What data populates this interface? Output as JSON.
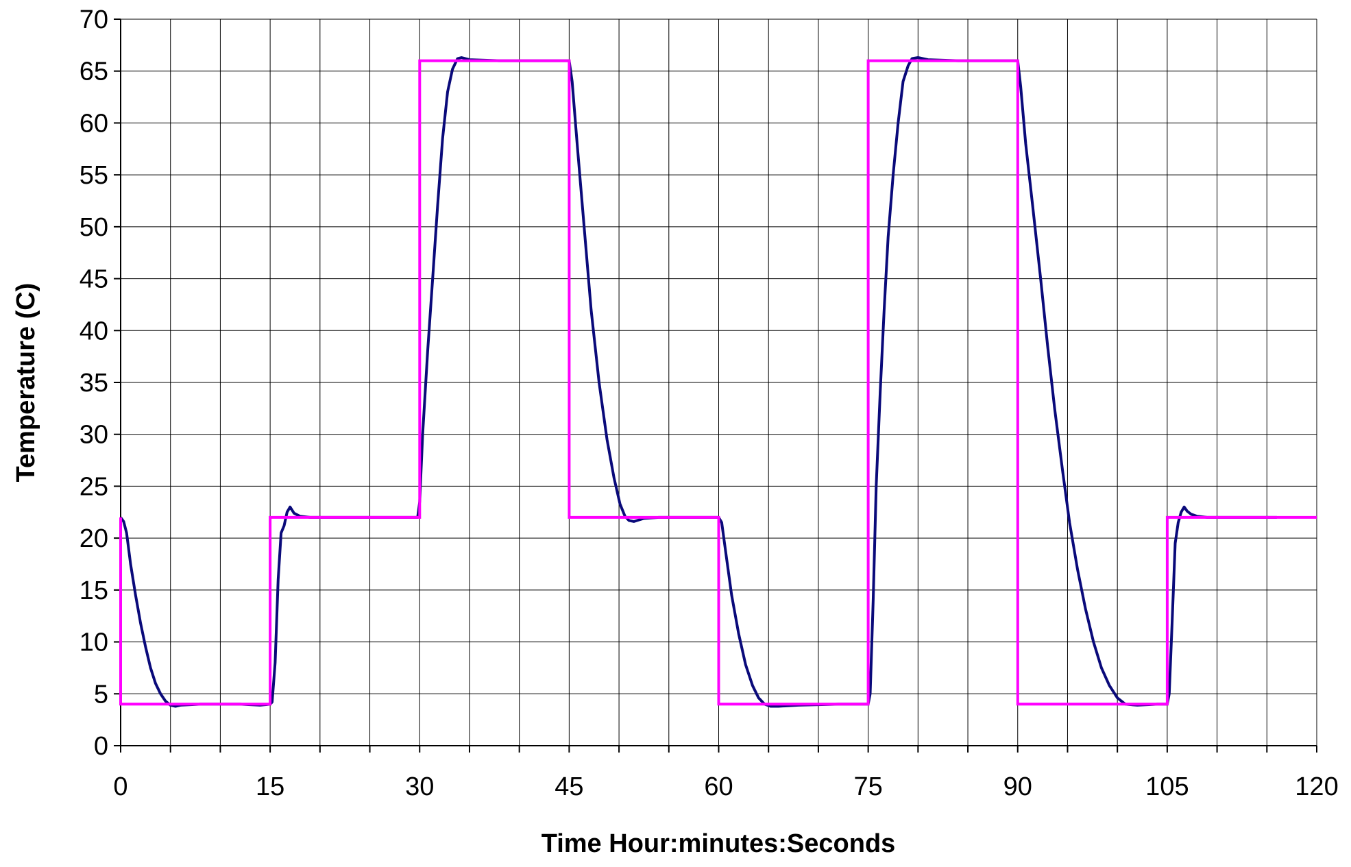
{
  "chart_data": {
    "type": "line",
    "title": "",
    "xlabel": "Time Hour:minutes:Seconds",
    "ylabel": "Temperature (C)",
    "xlim": [
      0,
      120
    ],
    "ylim": [
      0,
      70
    ],
    "xticks": [
      0,
      15,
      30,
      45,
      60,
      75,
      90,
      105,
      120
    ],
    "x_minor_step": 5,
    "yticks": [
      0,
      5,
      10,
      15,
      20,
      25,
      30,
      35,
      40,
      45,
      50,
      55,
      60,
      65,
      70
    ],
    "grid": true,
    "legend": "none",
    "series": [
      {
        "color": "#FF00FF",
        "style": "step",
        "x": [
          0,
          0,
          15,
          15,
          30,
          30,
          45,
          45,
          60,
          60,
          75,
          75,
          90,
          90,
          105,
          105,
          120
        ],
        "y": [
          22,
          4,
          4,
          22,
          22,
          66,
          66,
          22,
          22,
          4,
          4,
          66,
          66,
          4,
          4,
          22,
          22
        ]
      },
      {
        "color": "#0A0A7A",
        "style": "line",
        "x": [
          0,
          0.3,
          0.6,
          1,
          1.5,
          2,
          2.5,
          3,
          3.5,
          4,
          4.5,
          5,
          5.5,
          6,
          8,
          10,
          12,
          14,
          15,
          15.2,
          15.5,
          15.8,
          16.1,
          16.4,
          16.7,
          17,
          17.4,
          18,
          19,
          22,
          26,
          29.8,
          30,
          30.3,
          30.8,
          31.3,
          31.8,
          32.3,
          32.8,
          33.3,
          33.8,
          34.2,
          35,
          38,
          42,
          45,
          45.3,
          45.8,
          46.5,
          47.2,
          48,
          48.8,
          49.5,
          50.1,
          50.6,
          51,
          51.5,
          52.5,
          54,
          57,
          60,
          60.3,
          60.8,
          61.3,
          62,
          62.7,
          63.4,
          64,
          64.6,
          65.2,
          66,
          68,
          72,
          75,
          75.2,
          75.5,
          75.8,
          76.2,
          76.6,
          77,
          77.5,
          78,
          78.5,
          79,
          79.4,
          80,
          81,
          84,
          87,
          90,
          90.3,
          90.8,
          91.5,
          92.3,
          93,
          93.7,
          94.5,
          95.2,
          96,
          96.8,
          97.6,
          98.4,
          99.2,
          100,
          100.8,
          102,
          104,
          105,
          105.2,
          105.5,
          105.8,
          106.1,
          106.4,
          106.7,
          107,
          107.4,
          108,
          109,
          112,
          116
        ],
        "y": [
          22,
          21.6,
          20.5,
          17.5,
          14.5,
          11.8,
          9.5,
          7.5,
          6.0,
          5.0,
          4.3,
          3.9,
          3.8,
          3.9,
          4.0,
          4.0,
          4.0,
          3.9,
          4.0,
          4.2,
          8.0,
          16.0,
          20.5,
          21.2,
          22.5,
          23.0,
          22.4,
          22.1,
          22.0,
          22.0,
          22.0,
          22.0,
          23.5,
          30.0,
          38.0,
          45.0,
          52.0,
          58.5,
          63.0,
          65.2,
          66.2,
          66.3,
          66.1,
          66.0,
          66.0,
          66.0,
          64.0,
          58.0,
          50.0,
          42.0,
          35.0,
          29.5,
          25.8,
          23.3,
          22.1,
          21.7,
          21.6,
          21.9,
          22.0,
          22.0,
          22.0,
          21.5,
          18.0,
          14.5,
          10.8,
          7.8,
          5.8,
          4.6,
          4.0,
          3.8,
          3.8,
          3.9,
          4.0,
          4.0,
          5.0,
          14.0,
          25.0,
          34.0,
          42.0,
          49.0,
          55.0,
          60.0,
          64.0,
          65.5,
          66.2,
          66.3,
          66.1,
          66.0,
          66.0,
          66.0,
          63.5,
          58.0,
          52.0,
          45.0,
          38.5,
          32.5,
          26.5,
          21.5,
          17.0,
          13.2,
          10.0,
          7.5,
          5.8,
          4.6,
          4.0,
          3.9,
          4.0,
          4.0,
          5.0,
          12.0,
          19.5,
          21.5,
          22.5,
          23.0,
          22.6,
          22.3,
          22.1,
          22.0,
          22.0,
          22.0
        ]
      }
    ]
  }
}
